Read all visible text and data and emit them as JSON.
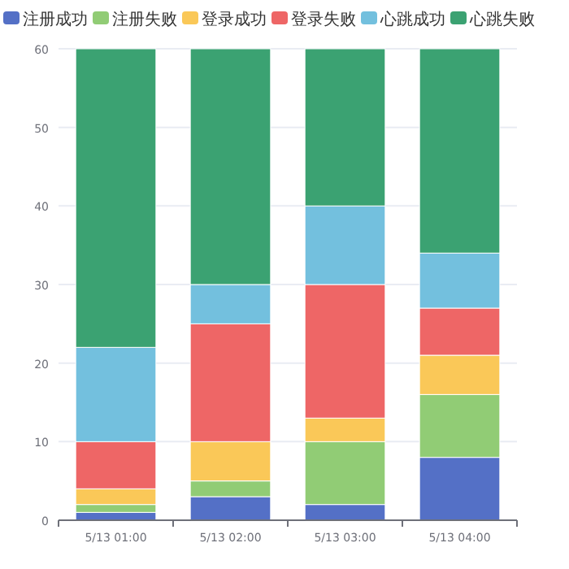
{
  "chart_data": {
    "type": "bar",
    "stacked": true,
    "categories": [
      "5/13 01:00",
      "5/13 02:00",
      "5/13 03:00",
      "5/13 04:00"
    ],
    "series": [
      {
        "name": "注册成功",
        "color": "#5470c6",
        "values": [
          1,
          3,
          2,
          8
        ]
      },
      {
        "name": "注册失败",
        "color": "#91cc75",
        "values": [
          1,
          2,
          8,
          8
        ]
      },
      {
        "name": "登录成功",
        "color": "#fac858",
        "values": [
          2,
          5,
          3,
          5
        ]
      },
      {
        "name": "登录失败",
        "color": "#ee6666",
        "values": [
          6,
          15,
          17,
          6
        ]
      },
      {
        "name": "心跳成功",
        "color": "#73c0de",
        "values": [
          12,
          5,
          10,
          7
        ]
      },
      {
        "name": "心跳失败",
        "color": "#3ba272",
        "values": [
          38,
          30,
          20,
          26
        ]
      }
    ],
    "ylim": [
      0,
      60
    ],
    "yticks": [
      0,
      10,
      20,
      30,
      40,
      50,
      60
    ],
    "grid": "y",
    "legend": "top left"
  }
}
